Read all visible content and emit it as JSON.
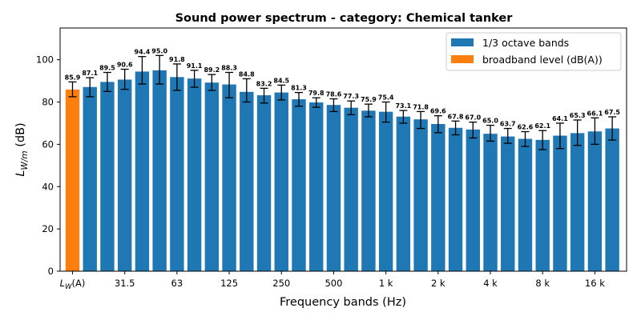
{
  "chart_data": {
    "type": "bar",
    "title": "Sound power spectrum - category: Chemical tanker",
    "xlabel": "Frequency bands (Hz)",
    "ylabel": {
      "base": "L",
      "subscript": "W/m",
      "unit": " (dB)"
    },
    "ylim": [
      0,
      115
    ],
    "yticks": [
      0,
      20,
      40,
      60,
      80,
      100
    ],
    "grid": false,
    "legend": {
      "placement": "top-right",
      "entries": [
        {
          "label": "1/3 octave bands",
          "color": "#1f77b4"
        },
        {
          "label": "broadband level (dB(A))",
          "color": "#ff7f0e"
        }
      ]
    },
    "xtick_labels": [
      {
        "index": 0,
        "base": "L",
        "subscript": "W",
        "suffix": "(A)"
      },
      {
        "index": 3,
        "text": "31.5"
      },
      {
        "index": 6,
        "text": "63"
      },
      {
        "index": 9,
        "text": "125"
      },
      {
        "index": 12,
        "text": "250"
      },
      {
        "index": 15,
        "text": "500"
      },
      {
        "index": 18,
        "text": "1 k"
      },
      {
        "index": 21,
        "text": "2 k"
      },
      {
        "index": 24,
        "text": "4 k"
      },
      {
        "index": 27,
        "text": "8 k"
      },
      {
        "index": 30,
        "text": "16 k"
      }
    ],
    "broadband": {
      "value": 85.9,
      "label": "85.9",
      "err": [
        82.5,
        89.5
      ],
      "color": "#ff7f0e"
    },
    "bands": {
      "color": "#1f77b4",
      "values": [
        87.1,
        89.5,
        90.6,
        94.4,
        95.0,
        91.8,
        91.1,
        89.2,
        88.3,
        84.8,
        83.2,
        84.5,
        81.3,
        79.8,
        78.6,
        77.3,
        75.9,
        75.4,
        73.1,
        71.8,
        69.6,
        67.8,
        67.0,
        65.0,
        63.7,
        62.6,
        62.1,
        64.1,
        65.3,
        66.1,
        67.5
      ],
      "labels": [
        "87.1",
        "89.5",
        "90.6",
        "94.4",
        "95.0",
        "91.8",
        "91.1",
        "89.2",
        "88.3",
        "84.8",
        "83.2",
        "84.5",
        "81.3",
        "79.8",
        "78.6",
        "77.3",
        "75.9",
        "75.4",
        "73.1",
        "71.8",
        "69.6",
        "67.8",
        "67.0",
        "65.0",
        "63.7",
        "62.6",
        "62.1",
        "64.1",
        "65.3",
        "66.1",
        "67.5"
      ],
      "err_low": [
        82.5,
        85.0,
        86.0,
        88.5,
        88.5,
        85.5,
        87.0,
        85.5,
        82.0,
        80.0,
        79.5,
        81.0,
        78.0,
        77.5,
        75.5,
        74.0,
        73.0,
        70.5,
        70.0,
        67.5,
        65.5,
        64.5,
        63.0,
        61.5,
        60.5,
        59.0,
        57.5,
        58.0,
        59.5,
        60.0,
        62.0
      ],
      "err_high": [
        91.5,
        94.0,
        95.5,
        101.5,
        102.0,
        98.0,
        95.0,
        93.0,
        94.0,
        91.0,
        86.5,
        88.0,
        84.5,
        82.0,
        81.5,
        80.5,
        79.0,
        80.0,
        76.0,
        75.5,
        73.5,
        71.0,
        70.5,
        69.0,
        67.5,
        66.0,
        66.5,
        70.0,
        71.5,
        72.5,
        73.0
      ]
    }
  }
}
